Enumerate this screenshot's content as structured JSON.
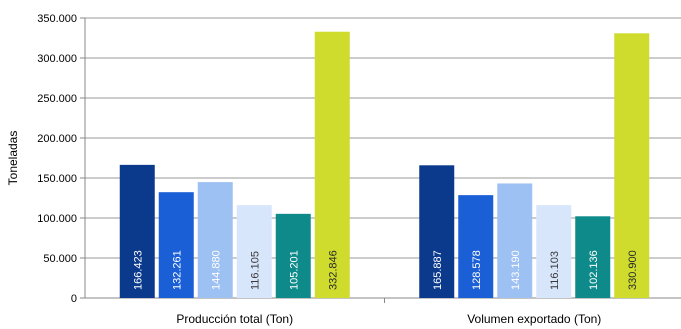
{
  "chart_data": {
    "type": "bar",
    "title": "",
    "xlabel": "",
    "ylabel": "Toneladas",
    "ylim": [
      0,
      350000
    ],
    "ytick_values": [
      0,
      50000,
      100000,
      150000,
      200000,
      250000,
      300000,
      350000
    ],
    "ytick_labels": [
      "0",
      "50.000",
      "100.000",
      "150.000",
      "200.000",
      "250.000",
      "300.000",
      "350.000"
    ],
    "grid": true,
    "legend": "none",
    "categories": [
      "Producción total (Ton)",
      "Volumen exportado (Ton)"
    ],
    "series": [
      {
        "values": [
          166423,
          165887
        ],
        "labels": [
          "166.423",
          "165.887"
        ],
        "color": "#0b3a8c",
        "label_color": "#ffffff"
      },
      {
        "values": [
          132261,
          128578
        ],
        "labels": [
          "132.261",
          "128.578"
        ],
        "color": "#1b5fd6",
        "label_color": "#ffffff"
      },
      {
        "values": [
          144880,
          143190
        ],
        "labels": [
          "144.880",
          "143.190"
        ],
        "color": "#9ec1f3",
        "label_color": "#ffffff"
      },
      {
        "values": [
          116105,
          116103
        ],
        "labels": [
          "116.105",
          "116.103"
        ],
        "color": "#d8e6fb",
        "label_color": "#3a3a3a"
      },
      {
        "values": [
          105201,
          102136
        ],
        "labels": [
          "105.201",
          "102.136"
        ],
        "color": "#0f8a8a",
        "label_color": "#ffffff"
      },
      {
        "values": [
          332846,
          330900
        ],
        "labels": [
          "332.846",
          "330.900"
        ],
        "color": "#cfdc2e",
        "label_color": "#2a2a2a"
      }
    ]
  }
}
